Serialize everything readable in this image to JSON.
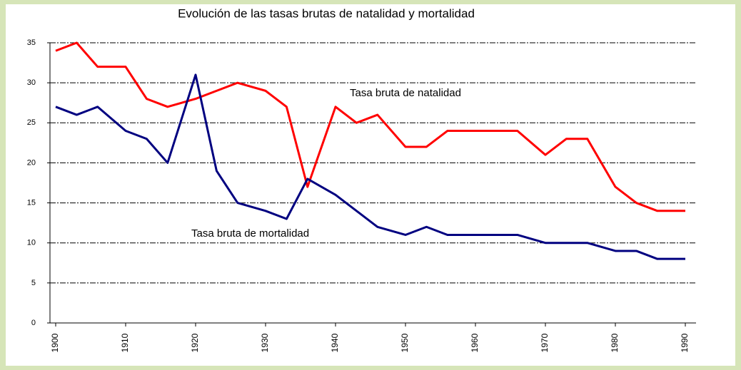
{
  "chart_data": {
    "type": "line",
    "title": "Evolución de las tasas brutas de natalidad y mortalidad",
    "x": [
      1900,
      1903,
      1906,
      1910,
      1913,
      1916,
      1920,
      1923,
      1926,
      1930,
      1933,
      1936,
      1940,
      1943,
      1946,
      1950,
      1953,
      1956,
      1960,
      1963,
      1966,
      1970,
      1973,
      1976,
      1980,
      1983,
      1986,
      1990
    ],
    "series": [
      {
        "name": "Tasa bruta de natalidad",
        "color": "#ff0000",
        "values": [
          34,
          35,
          32,
          32,
          28,
          27,
          28,
          29,
          30,
          29,
          27,
          17,
          27,
          25,
          26,
          22,
          22,
          24,
          24,
          24,
          24,
          21,
          23,
          23,
          17,
          15,
          14,
          14
        ]
      },
      {
        "name": "Tasa bruta de mortalidad",
        "color": "#000080",
        "values": [
          27,
          26,
          27,
          24,
          23,
          20,
          31,
          19,
          15,
          14,
          13,
          18,
          16,
          14,
          12,
          11,
          12,
          11,
          11,
          11,
          11,
          10,
          10,
          10,
          9,
          9,
          8,
          8
        ]
      }
    ],
    "xlim": [
      1900,
      1990
    ],
    "xticks": [
      1900,
      1910,
      1920,
      1930,
      1940,
      1950,
      1960,
      1970,
      1980,
      1990
    ],
    "ylim": [
      0,
      35
    ],
    "yticks": [
      0,
      5,
      10,
      15,
      20,
      25,
      30,
      35
    ],
    "grid": true
  }
}
